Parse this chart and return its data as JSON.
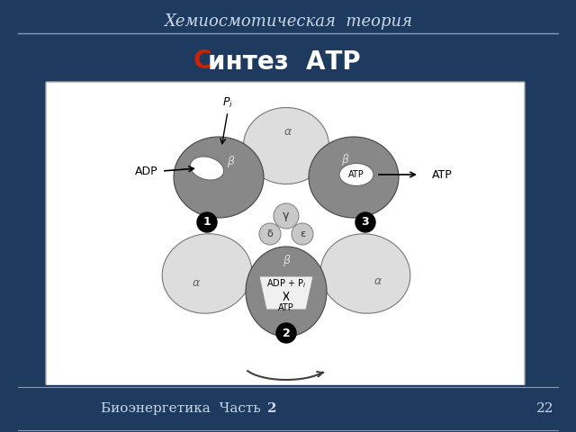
{
  "bg_color": "#1e3a5f",
  "content_bg": "#ffffff",
  "title_text": "Хемиосмотическая  теория",
  "subtitle_s": "С",
  "subtitle_rest": "интез  АТР",
  "footer_text": "Биоэнергетика  Часть ",
  "footer_bold": "2",
  "page_num": "22",
  "title_color": "#c8d8e8",
  "subtitle_color": "#1a1a2e",
  "subtitle_s_color": "#cc2200",
  "footer_color": "#c8d8e8",
  "line_color": "#8899bb",
  "dark_gray": "#888888",
  "med_gray": "#aaaaaa",
  "light_gray": "#cccccc",
  "lighter_gray": "#dddddd",
  "white": "#ffffff",
  "black": "#000000",
  "central_gray": "#c8c8c8"
}
